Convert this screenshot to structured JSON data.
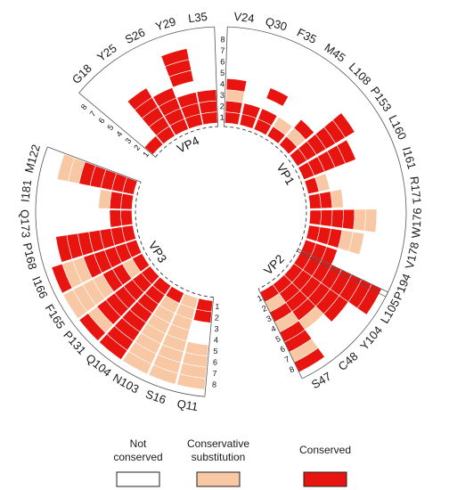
{
  "chart_data": {
    "type": "circular-heatmap",
    "ring_labels": [
      "1",
      "2",
      "3",
      "4",
      "5",
      "6",
      "7",
      "8"
    ],
    "colors": {
      "0": "#ffffff",
      "1": "#f8c7a3",
      "2": "#e8140f"
    },
    "legend": [
      {
        "label": "Not\nconserved",
        "level": 0
      },
      {
        "label": "Conservative\nsubstitution",
        "level": 1
      },
      {
        "label": "Conserved",
        "level": 2
      }
    ],
    "segments": [
      {
        "name": "VP1",
        "residues": [
          "V24",
          "Q30",
          "F35",
          "M45",
          "L108",
          "P153",
          "L160",
          "I161",
          "R171",
          "W176",
          "V178",
          "P194"
        ],
        "columns": [
          [
            2,
            2,
            1,
            2,
            0,
            0,
            0,
            0
          ],
          [
            2,
            2,
            0,
            0,
            0,
            0,
            0,
            0
          ],
          [
            2,
            2,
            0,
            2,
            0,
            0,
            0,
            0
          ],
          [
            2,
            1,
            0,
            0,
            0,
            0,
            0,
            0
          ],
          [
            2,
            1,
            2,
            0,
            0,
            0,
            0,
            0
          ],
          [
            2,
            2,
            2,
            2,
            2,
            2,
            0,
            0
          ],
          [
            2,
            2,
            2,
            2,
            2,
            0,
            0,
            0
          ],
          [
            2,
            1,
            0,
            0,
            0,
            0,
            0,
            0
          ],
          [
            2,
            2,
            1,
            0,
            0,
            0,
            0,
            0
          ],
          [
            2,
            2,
            2,
            2,
            1,
            1,
            0,
            0
          ],
          [
            2,
            2,
            2,
            1,
            1,
            0,
            0,
            0
          ],
          [
            2,
            2,
            2,
            0,
            0,
            0,
            0,
            0
          ]
        ]
      },
      {
        "name": "VP2",
        "residues": [
          "S47",
          "C48",
          "Y104",
          "L105"
        ],
        "columns": [
          [
            2,
            1,
            2,
            1,
            2,
            2,
            1,
            2
          ],
          [
            2,
            2,
            2,
            2,
            1,
            0,
            0,
            0
          ],
          [
            2,
            2,
            2,
            2,
            2,
            2,
            0,
            0
          ],
          [
            2,
            2,
            2,
            2,
            2,
            2,
            2,
            2
          ]
        ]
      },
      {
        "name": "VP3",
        "residues": [
          "Q11",
          "S16",
          "N103",
          "Q104",
          "P131",
          "F165",
          "I166",
          "P168",
          "Q173",
          "I181",
          "M122"
        ],
        "columns": [
          [
            2,
            2,
            0,
            0,
            1,
            1,
            1,
            1
          ],
          [
            1,
            1,
            1,
            1,
            1,
            1,
            1,
            1
          ],
          [
            2,
            1,
            1,
            1,
            1,
            1,
            1,
            1
          ],
          [
            2,
            2,
            2,
            2,
            2,
            2,
            2,
            2
          ],
          [
            2,
            2,
            2,
            2,
            2,
            2,
            1,
            2
          ],
          [
            2,
            1,
            2,
            2,
            1,
            1,
            1,
            1
          ],
          [
            2,
            2,
            2,
            2,
            2,
            1,
            1,
            2
          ],
          [
            2,
            2,
            2,
            2,
            2,
            2,
            2,
            0
          ],
          [
            2,
            2,
            0,
            0,
            0,
            0,
            0,
            0
          ],
          [
            2,
            2,
            1,
            0,
            0,
            0,
            0,
            0
          ],
          [
            2,
            2,
            2,
            2,
            2,
            1,
            1,
            0
          ]
        ]
      },
      {
        "name": "VP4",
        "residues": [
          "G18",
          "Y25",
          "S26",
          "Y29",
          "L35"
        ],
        "columns": [
          [
            2,
            0,
            0,
            0,
            0,
            0,
            0,
            0
          ],
          [
            2,
            2,
            2,
            2,
            2,
            0,
            0,
            0
          ],
          [
            2,
            2,
            2,
            2,
            0,
            0,
            0,
            0
          ],
          [
            2,
            2,
            2,
            0,
            2,
            2,
            2,
            0
          ],
          [
            2,
            2,
            2,
            0,
            0,
            0,
            0,
            0
          ]
        ]
      }
    ]
  }
}
